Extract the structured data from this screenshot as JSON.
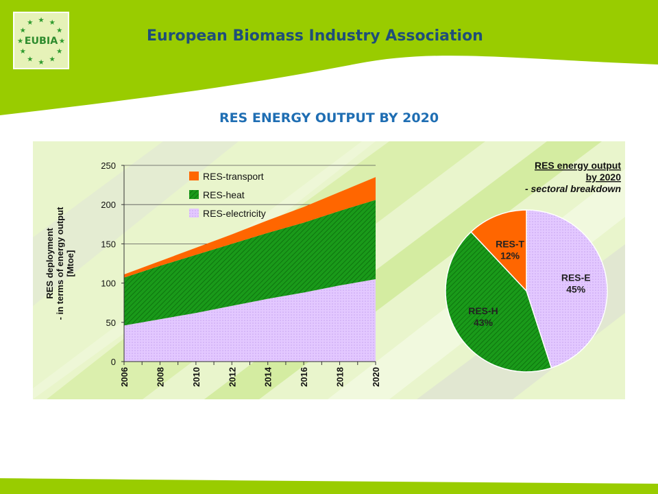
{
  "header": {
    "logo_text": "EUBIA",
    "title": "European Biomass Industry Association"
  },
  "slide": {
    "title": "RES ENERGY OUTPUT BY 2020"
  },
  "colors": {
    "lime": "#99cc00",
    "header_title": "#1f4e79",
    "slide_title": "#1f6eb3",
    "transport": "#ff6600",
    "heat": "#1a9a1a",
    "electricity": "#e3c8ff"
  },
  "chart_data": [
    {
      "type": "area",
      "stacked": true,
      "ylabel": "RES deployment\n- in terms of energy output\n[Mtoe]",
      "xlabel": "",
      "x": [
        2006,
        2008,
        2010,
        2012,
        2014,
        2016,
        2018,
        2020
      ],
      "x_tick_labels": [
        "2006",
        "2008",
        "2010",
        "2012",
        "2014",
        "2016",
        "2018",
        "2020"
      ],
      "ylim": [
        0,
        250
      ],
      "y_ticks": [
        0,
        50,
        100,
        150,
        200,
        250
      ],
      "y_tick_labels": [
        "0",
        "50",
        "100",
        "150",
        "200",
        "250"
      ],
      "legend_position": "top-left",
      "series": [
        {
          "name": "RES-electricity",
          "color": "#e3c8ff",
          "values": [
            46,
            54,
            62,
            71,
            80,
            88,
            97,
            105
          ]
        },
        {
          "name": "RES-heat",
          "color": "#1a9a1a",
          "values": [
            61,
            68,
            74,
            79,
            84,
            89,
            95,
            101
          ]
        },
        {
          "name": "RES-transport",
          "color": "#ff6600",
          "values": [
            4,
            6,
            9,
            12,
            16,
            20,
            24,
            29
          ]
        }
      ]
    },
    {
      "type": "pie",
      "title": "RES energy output\nby 2020\n- sectoral breakdown",
      "slices": [
        {
          "label": "RES-E",
          "value": 45,
          "value_label": "45%",
          "color": "#e3c8ff"
        },
        {
          "label": "RES-H",
          "value": 43,
          "value_label": "43%",
          "color": "#1a9a1a"
        },
        {
          "label": "RES-T",
          "value": 12,
          "value_label": "12%",
          "color": "#ff6600"
        }
      ]
    }
  ]
}
